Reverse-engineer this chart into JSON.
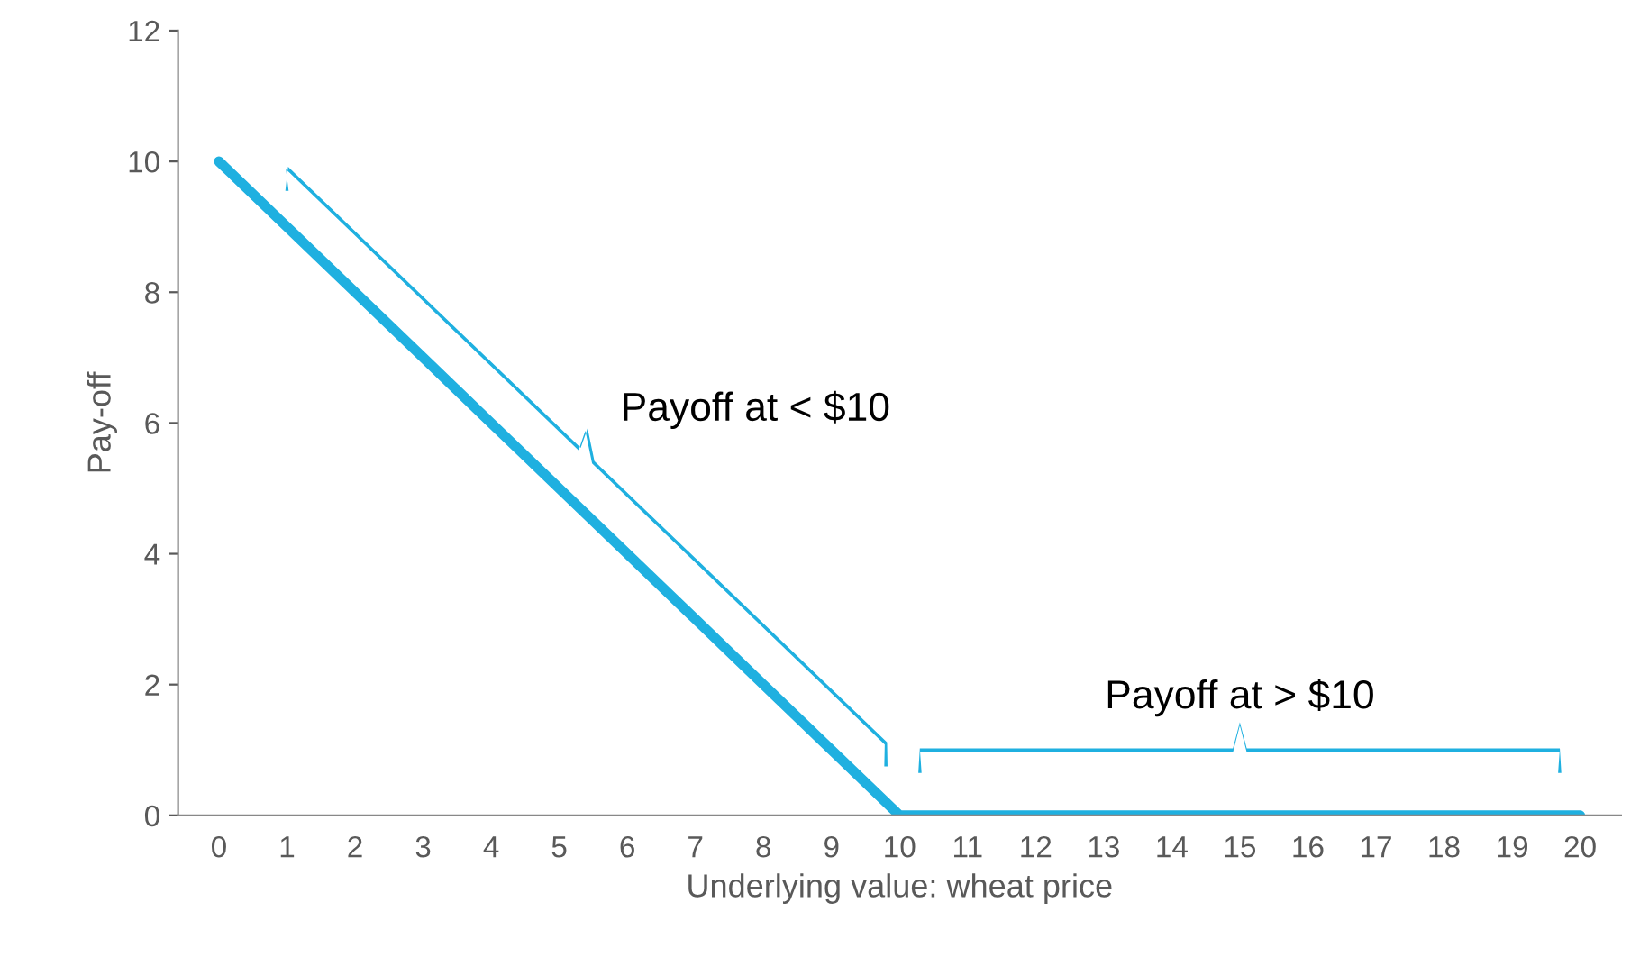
{
  "chart_data": {
    "type": "line",
    "xlabel": "Underlying value: wheat price",
    "ylabel": "Pay-off",
    "categories": [
      "0",
      "1",
      "2",
      "3",
      "4",
      "5",
      "6",
      "7",
      "8",
      "9",
      "10",
      "11",
      "12",
      "13",
      "14",
      "15",
      "16",
      "17",
      "18",
      "19",
      "20"
    ],
    "series": [
      {
        "color": "#1fb0e0",
        "values": [
          10,
          9,
          8,
          7,
          6,
          5,
          4,
          3,
          2,
          1,
          0,
          0,
          0,
          0,
          0,
          0,
          0,
          0,
          0,
          0,
          0
        ]
      }
    ],
    "ylim": [
      0,
      12
    ],
    "yticks": [
      0,
      2,
      4,
      6,
      8,
      10,
      12
    ],
    "grid": false,
    "marker": "none",
    "line_style": "solid",
    "annotations": [
      {
        "text": "Payoff at < $10",
        "x": "5",
        "y": 5
      },
      {
        "text": "Payoff at > $10",
        "x": "15",
        "y": 0
      }
    ]
  }
}
